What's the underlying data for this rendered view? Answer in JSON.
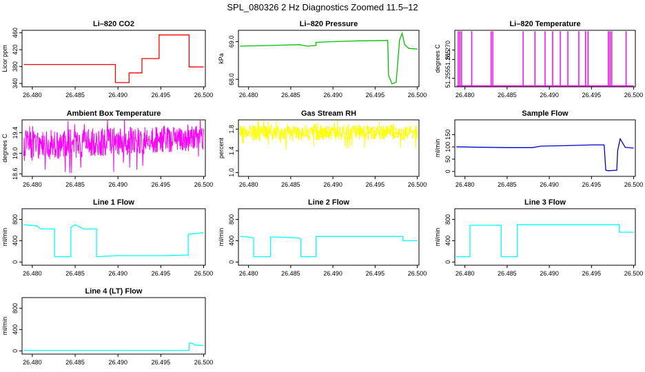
{
  "main_title": "SPL_080326  2 Hz Diagnostics Zoomed 11.5–12",
  "chart_data": [
    {
      "type": "line",
      "title": "Li–820 CO2",
      "ylabel": "Licor ppm",
      "color": "#ff0000",
      "xlim": [
        26.4788,
        26.5002
      ],
      "ylim": [
        332,
        466
      ],
      "xticks": [
        "26.480",
        "26.485",
        "26.490",
        "26.495",
        "26.500"
      ],
      "yticks": [
        "340",
        "380",
        "420",
        "460"
      ],
      "x": [
        26.479,
        26.4897,
        26.4897,
        26.4913,
        26.4913,
        26.4928,
        26.4928,
        26.4948,
        26.4948,
        26.4983,
        26.4983,
        26.5
      ],
      "y": [
        385,
        385,
        342,
        342,
        365,
        365,
        399,
        399,
        455,
        455,
        379,
        379
      ]
    },
    {
      "type": "line",
      "title": "Li–820 Pressure",
      "ylabel": "kPa",
      "color": "#00c000",
      "xlim": [
        26.4788,
        26.5002
      ],
      "ylim": [
        67.8,
        69.3
      ],
      "xticks": [
        "26.480",
        "26.485",
        "26.490",
        "26.495",
        "26.500"
      ],
      "yticks": [
        "68.0",
        "69.0"
      ],
      "x": [
        26.479,
        26.483,
        26.486,
        26.487,
        26.488,
        26.488,
        26.49,
        26.493,
        26.496,
        26.4965,
        26.4966,
        26.497,
        26.4975,
        26.4979,
        26.4982,
        26.4985,
        26.499,
        26.5
      ],
      "y": [
        68.88,
        68.9,
        68.92,
        68.88,
        68.9,
        68.98,
        69.0,
        69.02,
        69.03,
        69.03,
        68.1,
        67.88,
        67.92,
        69.04,
        69.22,
        68.92,
        68.82,
        68.8
      ]
    },
    {
      "type": "line",
      "title": "Li–820 Temperature",
      "ylabel": "degrees C",
      "color": "#ff00ff",
      "xlim": [
        26.4788,
        26.5002
      ],
      "ylim": [
        51.2505,
        51.2805
      ],
      "xticks": [
        "26.480",
        "26.485",
        "26.490",
        "26.495",
        "26.500"
      ],
      "yticks": [
        "51.255",
        "51.265",
        "51.270"
      ],
      "baseline": 51.251,
      "spike_top": 51.28,
      "spikes": [
        26.4792,
        26.4794,
        26.4796,
        26.4808,
        26.4831,
        26.4833,
        26.4869,
        26.4883,
        26.4895,
        26.4904,
        26.4913,
        26.4922,
        26.4935,
        26.4943,
        26.4946,
        26.497,
        26.4972,
        26.4974,
        26.4991
      ]
    },
    {
      "type": "line",
      "title": "Ambient Box Temperature",
      "ylabel": "degrees C",
      "color": "#ff00ff",
      "xlim": [
        26.4788,
        26.5002
      ],
      "ylim": [
        18.55,
        19.65
      ],
      "xticks": [
        "26.480",
        "26.485",
        "26.490",
        "26.495",
        "26.500"
      ],
      "yticks": [
        "18.6",
        "19.0",
        "19.4"
      ],
      "band": {
        "x0": 26.479,
        "x1": 26.5,
        "lo_start": 18.85,
        "lo_end": 19.05,
        "hi_start": 19.45,
        "hi_end": 19.55
      }
    },
    {
      "type": "line",
      "title": "Gas Stream RH",
      "ylabel": "percent",
      "color": "#ffff00",
      "xlim": [
        26.4788,
        26.5002
      ],
      "ylim": [
        0.93,
        1.97
      ],
      "xticks": [
        "26.480",
        "26.485",
        "26.490",
        "26.495",
        "26.500"
      ],
      "yticks": [
        "1.0",
        "1.4",
        "1.8"
      ],
      "band": {
        "x0": 26.479,
        "x1": 26.5,
        "lo_start": 1.58,
        "lo_end": 1.6,
        "hi_start": 1.88,
        "hi_end": 1.88
      }
    },
    {
      "type": "line",
      "title": "Sample Flow",
      "ylabel": "ml/min",
      "color": "#0000cc",
      "xlim": [
        26.4788,
        26.5002
      ],
      "ylim": [
        -20,
        210
      ],
      "xticks": [
        "26.480",
        "26.485",
        "26.490",
        "26.495",
        "26.500"
      ],
      "yticks": [
        "0",
        "50",
        "100",
        "150"
      ],
      "x": [
        26.479,
        26.485,
        26.488,
        26.489,
        26.492,
        26.495,
        26.4965,
        26.4967,
        26.497,
        26.498,
        26.4981,
        26.4984,
        26.499,
        26.5
      ],
      "y": [
        100,
        97,
        97,
        103,
        105,
        108,
        108,
        5,
        3,
        5,
        85,
        133,
        98,
        95
      ]
    },
    {
      "type": "line",
      "title": "Line 1 Flow",
      "ylabel": "ml/min",
      "color": "#00ffff",
      "xlim": [
        26.4788,
        26.5002
      ],
      "ylim": [
        -60,
        1000
      ],
      "xticks": [
        "26.480",
        "26.485",
        "26.490",
        "26.495",
        "26.500"
      ],
      "yticks": [
        "0",
        "400",
        "800"
      ],
      "x": [
        26.479,
        26.4805,
        26.481,
        26.4826,
        26.4826,
        26.4845,
        26.4845,
        26.485,
        26.486,
        26.4875,
        26.4875,
        26.49,
        26.495,
        26.4982,
        26.4982,
        26.5
      ],
      "y": [
        700,
        680,
        620,
        620,
        100,
        100,
        650,
        700,
        620,
        620,
        100,
        120,
        120,
        130,
        520,
        550
      ]
    },
    {
      "type": "line",
      "title": "Line 2 Flow",
      "ylabel": "ml/min",
      "color": "#00ffff",
      "xlim": [
        26.4788,
        26.5002
      ],
      "ylim": [
        -60,
        1000
      ],
      "xticks": [
        "26.480",
        "26.485",
        "26.490",
        "26.495",
        "26.500"
      ],
      "yticks": [
        "0",
        "400",
        "800"
      ],
      "x": [
        26.479,
        26.48,
        26.4806,
        26.4806,
        26.4826,
        26.4826,
        26.485,
        26.486,
        26.4862,
        26.4862,
        26.488,
        26.488,
        26.4983,
        26.4983,
        26.5
      ],
      "y": [
        480,
        470,
        450,
        100,
        100,
        470,
        460,
        450,
        430,
        100,
        100,
        480,
        480,
        400,
        400
      ]
    },
    {
      "type": "line",
      "title": "Line 3 Flow",
      "ylabel": "ml/min",
      "color": "#00ffff",
      "xlim": [
        26.4788,
        26.5002
      ],
      "ylim": [
        -60,
        1000
      ],
      "xticks": [
        "26.480",
        "26.485",
        "26.490",
        "26.495",
        "26.500"
      ],
      "yticks": [
        "0",
        "400",
        "800"
      ],
      "x": [
        26.479,
        26.4806,
        26.4806,
        26.4843,
        26.4843,
        26.4862,
        26.4862,
        26.4983,
        26.4983,
        26.5
      ],
      "y": [
        100,
        100,
        690,
        690,
        100,
        100,
        700,
        700,
        560,
        560
      ]
    },
    {
      "type": "line",
      "title": "Line 4 (LT) Flow",
      "ylabel": "ml/min",
      "color": "#00ffff",
      "xlim": [
        26.4788,
        26.5002
      ],
      "ylim": [
        -60,
        1000
      ],
      "xticks": [
        "26.480",
        "26.485",
        "26.490",
        "26.495",
        "26.500"
      ],
      "yticks": [
        "0",
        "400",
        "800"
      ],
      "x": [
        26.479,
        26.4983,
        26.4983,
        26.4986,
        26.499,
        26.5
      ],
      "y": [
        10,
        10,
        140,
        150,
        110,
        100
      ]
    }
  ]
}
